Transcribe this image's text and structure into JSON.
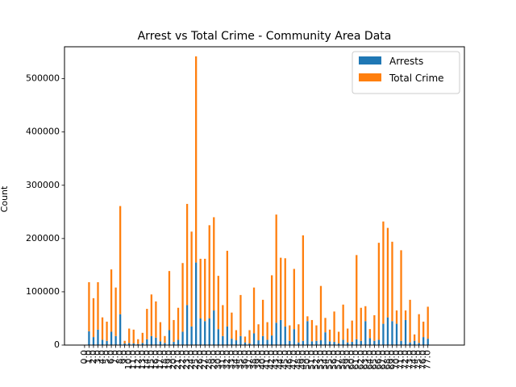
{
  "chart_data": {
    "type": "bar",
    "stacked": true,
    "title": "Arrest vs Total Crime - Community Area Data",
    "xlabel": "",
    "ylabel": "Count",
    "ylim": [
      0,
      560000
    ],
    "yticks": [
      0,
      100000,
      200000,
      300000,
      400000,
      500000
    ],
    "ytick_labels": [
      "0",
      "100000",
      "200000",
      "300000",
      "400000",
      "500000"
    ],
    "legend_position": "top-right",
    "categories": [
      "0.0",
      "1.0",
      "2.0",
      "3.0",
      "4.0",
      "5.0",
      "6.0",
      "7.0",
      "8.0",
      "9.0",
      "10.0",
      "11.0",
      "12.0",
      "13.0",
      "14.0",
      "15.0",
      "16.0",
      "17.0",
      "18.0",
      "19.0",
      "20.0",
      "21.0",
      "22.0",
      "23.0",
      "24.0",
      "25.0",
      "26.0",
      "27.0",
      "28.0",
      "29.0",
      "30.0",
      "31.0",
      "32.0",
      "33.0",
      "34.0",
      "35.0",
      "36.0",
      "37.0",
      "38.0",
      "39.0",
      "40.0",
      "41.0",
      "42.0",
      "43.0",
      "44.0",
      "45.0",
      "46.0",
      "47.0",
      "48.0",
      "49.0",
      "50.0",
      "51.0",
      "52.0",
      "53.0",
      "54.0",
      "55.0",
      "56.0",
      "57.0",
      "58.0",
      "59.0",
      "60.0",
      "61.0",
      "62.0",
      "63.0",
      "64.0",
      "65.0",
      "66.0",
      "67.0",
      "68.0",
      "69.0",
      "70.0",
      "71.0",
      "72.0",
      "73.0",
      "74.0",
      "75.0",
      "76.0",
      "77.0"
    ],
    "series": [
      {
        "name": "Arrests",
        "color": "#1f77b4",
        "values": [
          0,
          26000,
          15000,
          29000,
          10000,
          8000,
          25000,
          17000,
          58000,
          3000,
          4000,
          3000,
          2000,
          4000,
          11000,
          17000,
          14000,
          7000,
          4000,
          28000,
          6000,
          10000,
          25000,
          75000,
          35000,
          155000,
          50000,
          45000,
          50000,
          65000,
          30000,
          17000,
          35000,
          12000,
          9000,
          17000,
          5000,
          3000,
          22000,
          9000,
          17000,
          10000,
          18000,
          42000,
          47000,
          35000,
          8000,
          30000,
          5000,
          8000,
          45000,
          7000,
          8000,
          9000,
          24000,
          7000,
          6000,
          3000,
          10000,
          5000,
          6000,
          11000,
          8000,
          45000,
          13000,
          8000,
          10000,
          40000,
          52000,
          45000,
          40000,
          8000,
          47000,
          5000,
          8000,
          4000,
          15000,
          12000
        ]
      },
      {
        "name": "Total Crime",
        "color": "#ff7f0e",
        "values": [
          0,
          92000,
          73000,
          89000,
          42000,
          36000,
          117000,
          91000,
          203000,
          5000,
          27000,
          26000,
          9000,
          19000,
          57000,
          78000,
          68000,
          36000,
          13000,
          111000,
          41000,
          60000,
          129000,
          190000,
          178000,
          387000,
          112000,
          117000,
          175000,
          175000,
          100000,
          58000,
          142000,
          49000,
          19000,
          77000,
          11000,
          25000,
          86000,
          30000,
          68000,
          33000,
          113000,
          203000,
          117000,
          128000,
          29000,
          113000,
          34000,
          198000,
          9000,
          40000,
          29000,
          102000,
          27000,
          22000,
          57000,
          22000,
          66000,
          26000,
          40000,
          158000,
          62000,
          28000,
          17000,
          48000,
          182000,
          192000,
          168000,
          149000,
          25000,
          170000,
          18000,
          80000,
          12000,
          54000,
          29000,
          60000
        ]
      }
    ]
  }
}
